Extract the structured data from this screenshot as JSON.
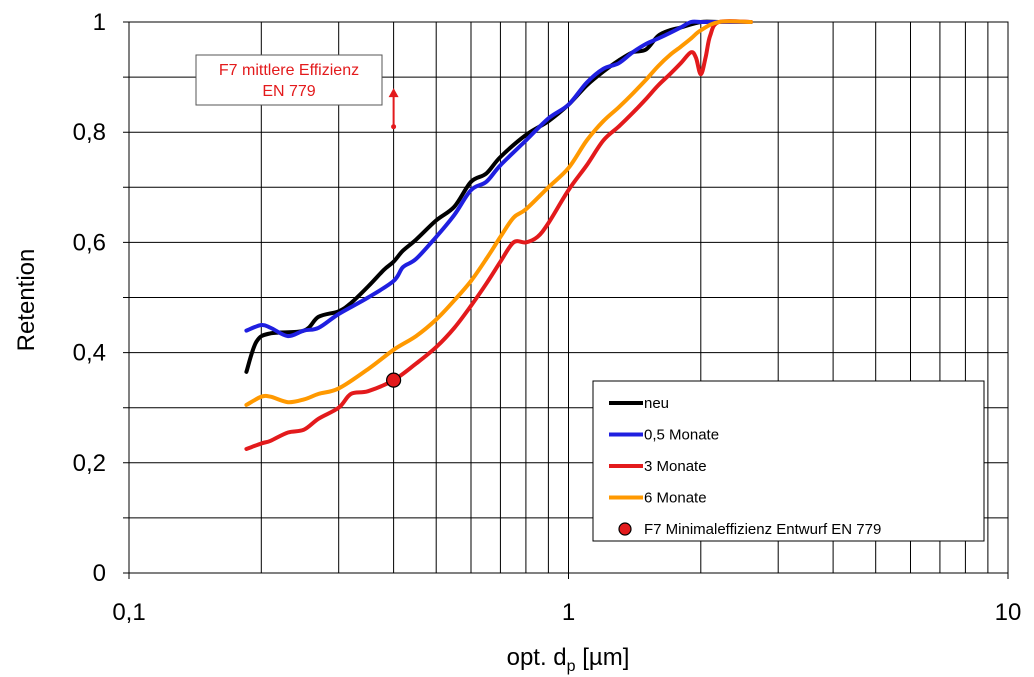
{
  "chart_data": {
    "type": "line",
    "xlabel_main": "opt. d",
    "xlabel_sub": "p",
    "xlabel_unit": " [µm]",
    "ylabel": "Retention",
    "xscale": "log",
    "xlim": [
      0.1,
      10
    ],
    "ylim": [
      0,
      1
    ],
    "grid": true,
    "legend_position": "bottom-right",
    "x_ticks": [
      {
        "value": 0.1,
        "label": "0,1"
      },
      {
        "value": 1,
        "label": "1"
      },
      {
        "value": 10,
        "label": "10"
      }
    ],
    "y_ticks": [
      {
        "value": 0,
        "label": "0"
      },
      {
        "value": 0.2,
        "label": "0,2"
      },
      {
        "value": 0.4,
        "label": "0,4"
      },
      {
        "value": 0.6,
        "label": "0,6"
      },
      {
        "value": 0.8,
        "label": "0,8"
      },
      {
        "value": 1,
        "label": "1"
      }
    ],
    "series": [
      {
        "name": "neu",
        "color": "#000000",
        "x": [
          0.185,
          0.195,
          0.21,
          0.25,
          0.27,
          0.3,
          0.32,
          0.35,
          0.38,
          0.4,
          0.42,
          0.45,
          0.5,
          0.55,
          0.6,
          0.65,
          0.7,
          0.8,
          0.9,
          1.0,
          1.1,
          1.2,
          1.3,
          1.4,
          1.5,
          1.6,
          1.7,
          1.8,
          2.0,
          2.2,
          2.6
        ],
        "y": [
          0.365,
          0.42,
          0.435,
          0.44,
          0.465,
          0.475,
          0.49,
          0.52,
          0.55,
          0.565,
          0.585,
          0.605,
          0.64,
          0.665,
          0.71,
          0.725,
          0.755,
          0.795,
          0.82,
          0.85,
          0.885,
          0.91,
          0.93,
          0.945,
          0.95,
          0.975,
          0.985,
          0.99,
          1.0,
          1.0,
          1.0
        ]
      },
      {
        "name": "0,5 Monate",
        "color": "#1f1fe0",
        "x": [
          0.185,
          0.2,
          0.21,
          0.23,
          0.25,
          0.27,
          0.3,
          0.35,
          0.4,
          0.42,
          0.45,
          0.5,
          0.55,
          0.6,
          0.65,
          0.7,
          0.8,
          0.9,
          1.0,
          1.1,
          1.2,
          1.3,
          1.4,
          1.5,
          1.6,
          1.7,
          1.8,
          1.9,
          2.0,
          2.2,
          2.6
        ],
        "y": [
          0.44,
          0.45,
          0.445,
          0.43,
          0.44,
          0.445,
          0.47,
          0.5,
          0.53,
          0.555,
          0.57,
          0.61,
          0.65,
          0.695,
          0.71,
          0.74,
          0.785,
          0.825,
          0.85,
          0.89,
          0.915,
          0.925,
          0.945,
          0.96,
          0.97,
          0.98,
          0.99,
          1.0,
          1.0,
          1.0,
          1.0
        ]
      },
      {
        "name": "3 Monate",
        "color": "#e31a1c",
        "x": [
          0.185,
          0.2,
          0.21,
          0.23,
          0.25,
          0.27,
          0.3,
          0.32,
          0.35,
          0.4,
          0.45,
          0.5,
          0.55,
          0.6,
          0.65,
          0.7,
          0.75,
          0.8,
          0.85,
          0.9,
          1.0,
          1.1,
          1.2,
          1.3,
          1.4,
          1.5,
          1.6,
          1.7,
          1.8,
          1.9,
          1.95,
          2.0,
          2.05,
          2.1,
          2.2,
          2.6
        ],
        "y": [
          0.225,
          0.235,
          0.24,
          0.255,
          0.26,
          0.28,
          0.3,
          0.325,
          0.33,
          0.35,
          0.38,
          0.41,
          0.445,
          0.485,
          0.525,
          0.565,
          0.6,
          0.6,
          0.61,
          0.635,
          0.695,
          0.74,
          0.785,
          0.81,
          0.835,
          0.86,
          0.885,
          0.905,
          0.925,
          0.945,
          0.935,
          0.905,
          0.935,
          0.975,
          1.0,
          1.0
        ]
      },
      {
        "name": "6 Monate",
        "color": "#ff9900",
        "x": [
          0.185,
          0.2,
          0.21,
          0.23,
          0.25,
          0.27,
          0.3,
          0.35,
          0.4,
          0.45,
          0.5,
          0.55,
          0.6,
          0.65,
          0.7,
          0.75,
          0.8,
          0.9,
          1.0,
          1.1,
          1.2,
          1.3,
          1.4,
          1.5,
          1.6,
          1.7,
          1.8,
          1.9,
          2.0,
          2.2,
          2.6
        ],
        "y": [
          0.305,
          0.32,
          0.32,
          0.31,
          0.315,
          0.325,
          0.335,
          0.37,
          0.405,
          0.43,
          0.46,
          0.495,
          0.53,
          0.57,
          0.61,
          0.645,
          0.66,
          0.7,
          0.735,
          0.785,
          0.82,
          0.845,
          0.87,
          0.895,
          0.92,
          0.94,
          0.955,
          0.97,
          0.985,
          1.0,
          1.0
        ]
      }
    ],
    "marker": {
      "name": "F7 Minimaleffizienz Entwurf EN 779",
      "x": 0.4,
      "y": 0.35,
      "color": "#e31a1c"
    },
    "annotation": {
      "line1": "F7 mittlere Effizienz",
      "line2": "EN 779",
      "color": "#e31a1c",
      "arrow_x": 0.4,
      "arrow_y_from": 0.81,
      "arrow_y_to": 0.88
    }
  }
}
